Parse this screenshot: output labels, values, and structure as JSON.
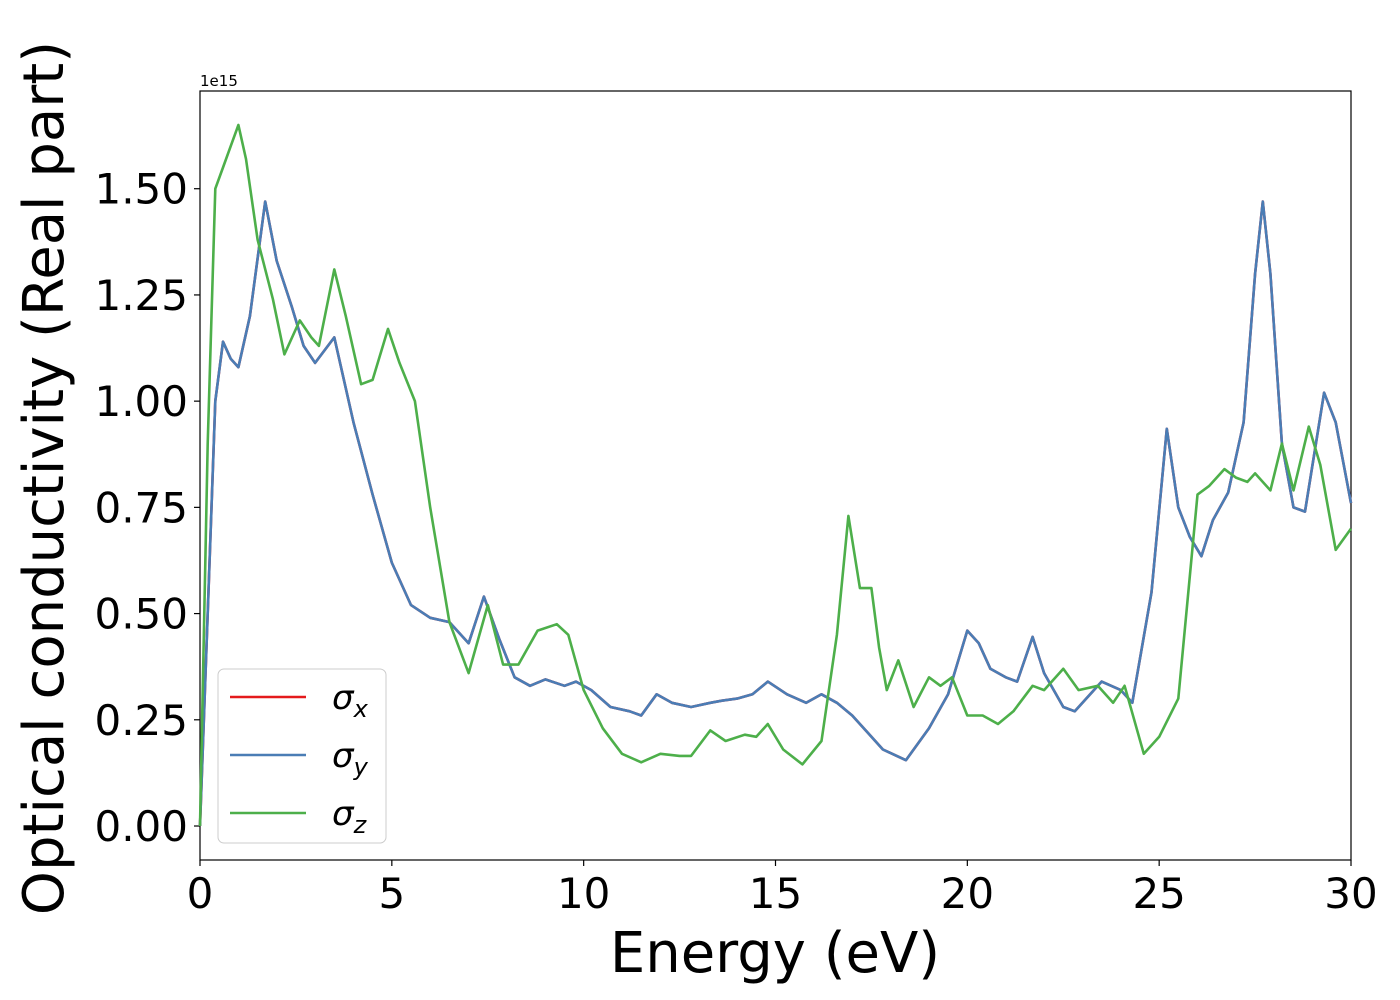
{
  "chart_data": {
    "type": "line",
    "xlabel": "Energy (eV)",
    "ylabel": "Optical conductivity (Real part)",
    "y_offset_label": "1e15",
    "xlim": [
      0,
      30
    ],
    "xticks": [
      0,
      5,
      10,
      15,
      20,
      25,
      30
    ],
    "ylim": [
      -0.08,
      1.73
    ],
    "yticks": [
      {
        "value": 0,
        "label": "0.00"
      },
      {
        "value": 0.25,
        "label": "0.25"
      },
      {
        "value": 0.5,
        "label": "0.50"
      },
      {
        "value": 0.75,
        "label": "0.75"
      },
      {
        "value": 1,
        "label": "1.00"
      },
      {
        "value": 1.25,
        "label": "1.25"
      },
      {
        "value": 1.5,
        "label": "1.50"
      }
    ],
    "legend": "lower left",
    "series": [
      {
        "name": "σx",
        "color": "#e41a1c",
        "x": [
          0,
          0.2,
          0.4,
          0.6,
          0.8,
          1.0,
          1.3,
          1.7,
          2.0,
          2.4,
          2.7,
          3.0,
          3.5,
          4.0,
          4.5,
          5.0,
          5.5,
          6.0,
          6.5,
          7.0,
          7.4,
          7.8,
          8.2,
          8.6,
          9.0,
          9.5,
          9.8,
          10.2,
          10.7,
          11.2,
          11.5,
          11.9,
          12.3,
          12.8,
          13.3,
          13.6,
          14.0,
          14.4,
          14.8,
          15.3,
          15.8,
          16.2,
          16.6,
          17.0,
          17.4,
          17.8,
          18.4,
          19.0,
          19.5,
          20.0,
          20.3,
          20.6,
          21.0,
          21.3,
          21.7,
          22.0,
          22.5,
          22.8,
          23.5,
          24.0,
          24.3,
          24.8,
          25.2,
          25.5,
          25.8,
          26.1,
          26.4,
          26.8,
          27.2,
          27.5,
          27.7,
          27.9,
          28.2,
          28.5,
          28.8,
          29.3,
          29.6,
          30.0
        ],
        "values": [
          0,
          0.5,
          1.0,
          1.14,
          1.1,
          1.08,
          1.2,
          1.47,
          1.33,
          1.22,
          1.13,
          1.09,
          1.15,
          0.95,
          0.78,
          0.62,
          0.52,
          0.49,
          0.48,
          0.43,
          0.54,
          0.44,
          0.35,
          0.33,
          0.345,
          0.33,
          0.34,
          0.32,
          0.28,
          0.27,
          0.26,
          0.31,
          0.29,
          0.28,
          0.29,
          0.295,
          0.3,
          0.31,
          0.34,
          0.31,
          0.29,
          0.31,
          0.29,
          0.26,
          0.22,
          0.18,
          0.155,
          0.23,
          0.31,
          0.46,
          0.43,
          0.37,
          0.35,
          0.34,
          0.445,
          0.36,
          0.28,
          0.27,
          0.34,
          0.32,
          0.29,
          0.55,
          0.935,
          0.75,
          0.68,
          0.635,
          0.72,
          0.785,
          0.95,
          1.3,
          1.47,
          1.3,
          0.9,
          0.75,
          0.74,
          1.02,
          0.95,
          0.76
        ]
      },
      {
        "name": "σy",
        "color": "#4a7db5",
        "x": [
          0,
          0.2,
          0.4,
          0.6,
          0.8,
          1.0,
          1.3,
          1.7,
          2.0,
          2.4,
          2.7,
          3.0,
          3.5,
          4.0,
          4.5,
          5.0,
          5.5,
          6.0,
          6.5,
          7.0,
          7.4,
          7.8,
          8.2,
          8.6,
          9.0,
          9.5,
          9.8,
          10.2,
          10.7,
          11.2,
          11.5,
          11.9,
          12.3,
          12.8,
          13.3,
          13.6,
          14.0,
          14.4,
          14.8,
          15.3,
          15.8,
          16.2,
          16.6,
          17.0,
          17.4,
          17.8,
          18.4,
          19.0,
          19.5,
          20.0,
          20.3,
          20.6,
          21.0,
          21.3,
          21.7,
          22.0,
          22.5,
          22.8,
          23.5,
          24.0,
          24.3,
          24.8,
          25.2,
          25.5,
          25.8,
          26.1,
          26.4,
          26.8,
          27.2,
          27.5,
          27.7,
          27.9,
          28.2,
          28.5,
          28.8,
          29.3,
          29.6,
          30.0
        ],
        "values": [
          0,
          0.5,
          1.0,
          1.14,
          1.1,
          1.08,
          1.2,
          1.47,
          1.33,
          1.22,
          1.13,
          1.09,
          1.15,
          0.95,
          0.78,
          0.62,
          0.52,
          0.49,
          0.48,
          0.43,
          0.54,
          0.44,
          0.35,
          0.33,
          0.345,
          0.33,
          0.34,
          0.32,
          0.28,
          0.27,
          0.26,
          0.31,
          0.29,
          0.28,
          0.29,
          0.295,
          0.3,
          0.31,
          0.34,
          0.31,
          0.29,
          0.31,
          0.29,
          0.26,
          0.22,
          0.18,
          0.155,
          0.23,
          0.31,
          0.46,
          0.43,
          0.37,
          0.35,
          0.34,
          0.445,
          0.36,
          0.28,
          0.27,
          0.34,
          0.32,
          0.29,
          0.55,
          0.935,
          0.75,
          0.68,
          0.635,
          0.72,
          0.785,
          0.95,
          1.3,
          1.47,
          1.3,
          0.9,
          0.75,
          0.74,
          1.02,
          0.95,
          0.76
        ]
      },
      {
        "name": "σz",
        "color": "#4daf4a",
        "x": [
          0,
          0.2,
          0.4,
          0.6,
          0.8,
          1.0,
          1.2,
          1.5,
          1.9,
          2.2,
          2.6,
          2.9,
          3.1,
          3.5,
          3.8,
          4.2,
          4.5,
          4.9,
          5.2,
          5.6,
          6.0,
          6.5,
          7.0,
          7.5,
          7.9,
          8.3,
          8.8,
          9.3,
          9.6,
          10.0,
          10.5,
          11.0,
          11.5,
          12.0,
          12.5,
          12.8,
          13.3,
          13.7,
          14.2,
          14.5,
          14.8,
          15.2,
          15.7,
          16.2,
          16.6,
          16.9,
          17.2,
          17.5,
          17.7,
          17.9,
          18.2,
          18.6,
          19.0,
          19.3,
          19.6,
          20.0,
          20.4,
          20.8,
          21.2,
          21.7,
          22.0,
          22.5,
          22.9,
          23.4,
          23.8,
          24.1,
          24.6,
          25.0,
          25.5,
          26.0,
          26.3,
          26.7,
          27.0,
          27.3,
          27.5,
          27.9,
          28.2,
          28.5,
          28.9,
          29.2,
          29.6,
          30.0
        ],
        "values": [
          0,
          0.9,
          1.5,
          1.55,
          1.6,
          1.65,
          1.57,
          1.38,
          1.24,
          1.11,
          1.19,
          1.15,
          1.13,
          1.31,
          1.2,
          1.04,
          1.05,
          1.17,
          1.09,
          1.0,
          0.75,
          0.48,
          0.36,
          0.52,
          0.38,
          0.38,
          0.46,
          0.475,
          0.45,
          0.32,
          0.23,
          0.17,
          0.15,
          0.17,
          0.165,
          0.165,
          0.225,
          0.2,
          0.215,
          0.21,
          0.24,
          0.18,
          0.145,
          0.2,
          0.45,
          0.73,
          0.56,
          0.56,
          0.42,
          0.32,
          0.39,
          0.28,
          0.35,
          0.33,
          0.35,
          0.26,
          0.26,
          0.24,
          0.27,
          0.33,
          0.32,
          0.37,
          0.32,
          0.33,
          0.29,
          0.33,
          0.17,
          0.21,
          0.3,
          0.78,
          0.8,
          0.84,
          0.82,
          0.81,
          0.83,
          0.79,
          0.9,
          0.79,
          0.94,
          0.85,
          0.65,
          0.7
        ]
      }
    ]
  }
}
